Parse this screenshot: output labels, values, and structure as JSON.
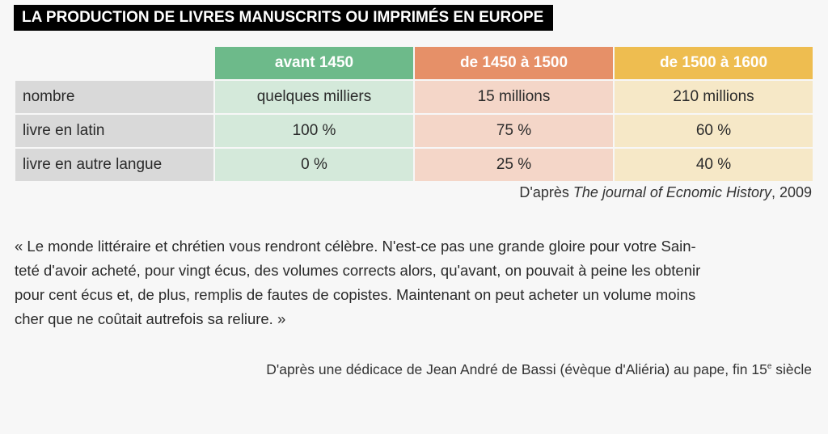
{
  "title": "LA PRODUCTION DE LIVRES MANUSCRITS OU IMPRIMÉS EN EUROPE",
  "table": {
    "headers": [
      "avant 1450",
      "de 1450 à 1500",
      "de 1500 à 1600"
    ],
    "rows": [
      {
        "label": "nombre",
        "values": [
          "quelques milliers",
          "15 millions",
          "210 millions"
        ]
      },
      {
        "label": "livre en latin",
        "values": [
          "100 %",
          "75 %",
          "60 %"
        ]
      },
      {
        "label": "livre en autre langue",
        "values": [
          "0 %",
          "25 %",
          "40 %"
        ]
      }
    ],
    "colors": {
      "header": [
        "#6dba8a",
        "#e69068",
        "#eebd50"
      ],
      "cells": [
        "#d4e9da",
        "#f4d6c8",
        "#f6e8c7"
      ]
    }
  },
  "source1": {
    "prefix": "D'après ",
    "italic": "The journal of Ecnomic History",
    "suffix": ", 2009"
  },
  "quote_lines": [
    "« Le monde littéraire et chrétien vous rendront célèbre. N'est-ce pas une grande gloire pour votre Sain-",
    "teté d'avoir acheté, pour vingt écus, des volumes corrects alors, qu'avant, on pouvait à peine les obtenir",
    "pour cent écus et, de plus, remplis de fautes de copistes. Maintenant on peut acheter un volume moins",
    "cher que ne coûtait autrefois sa reliure. »"
  ],
  "source2": {
    "text": "D'après une dédicace de Jean André de Bassi (évèque d'Aliéria) au pape, fin 15",
    "sup": "e",
    "suffix": " siècle"
  }
}
